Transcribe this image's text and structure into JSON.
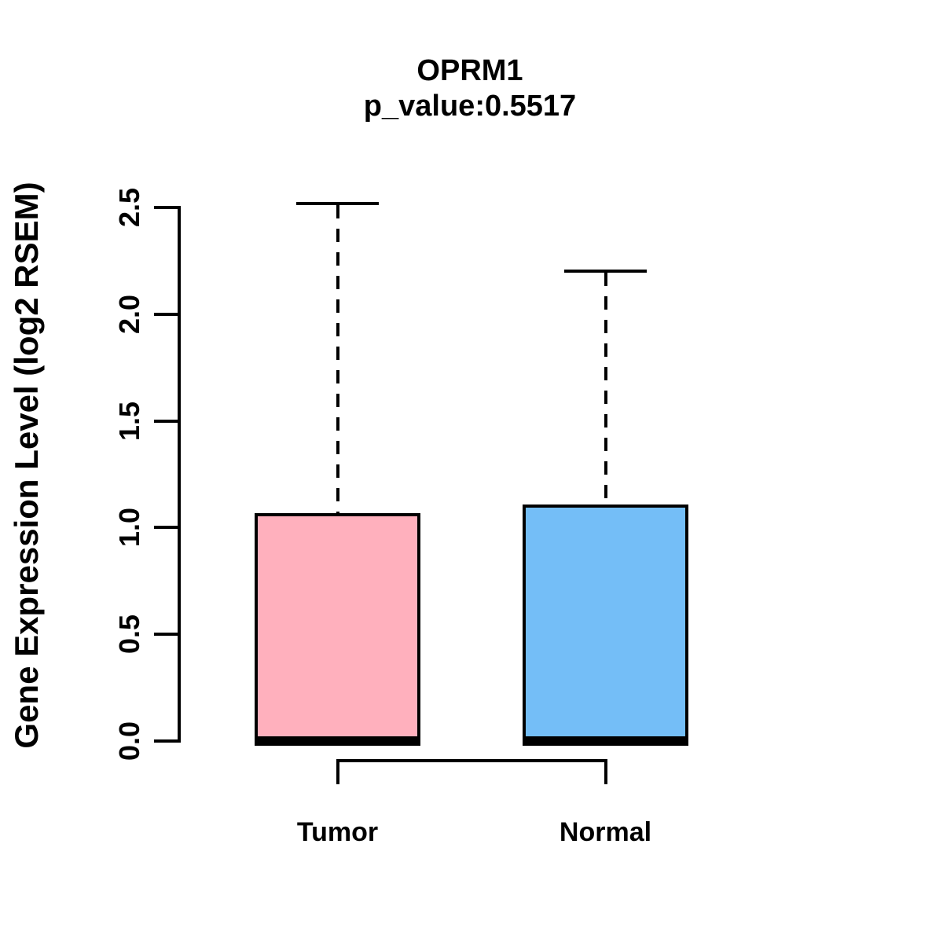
{
  "chart_data": {
    "type": "boxplot",
    "title": "OPRM1",
    "subtitle": "p_value:0.5517",
    "ylabel": "Gene Expression Level (log2 RSEM)",
    "xlabel": "",
    "categories": [
      "Tumor",
      "Normal"
    ],
    "series": [
      {
        "name": "Tumor",
        "lower_whisker": 0,
        "q1": 0,
        "median": 0,
        "q3": 1.06,
        "upper_whisker": 2.52,
        "fill_color": "#FFB0BD"
      },
      {
        "name": "Normal",
        "lower_whisker": 0,
        "q1": 0,
        "median": 0,
        "q3": 1.1,
        "upper_whisker": 2.2,
        "fill_color": "#74BEF7"
      }
    ],
    "yticks": [
      "0.0",
      "0.5",
      "1.0",
      "1.5",
      "2.0",
      "2.5"
    ],
    "ylim": [
      0,
      2.5
    ],
    "grid": false,
    "legend": "none",
    "annotations": {
      "comparison_bracket_between": [
        "Tumor",
        "Normal"
      ]
    }
  },
  "colors": {
    "background": "#FFFFFF",
    "box_border": "#000000",
    "text": "#000000"
  }
}
